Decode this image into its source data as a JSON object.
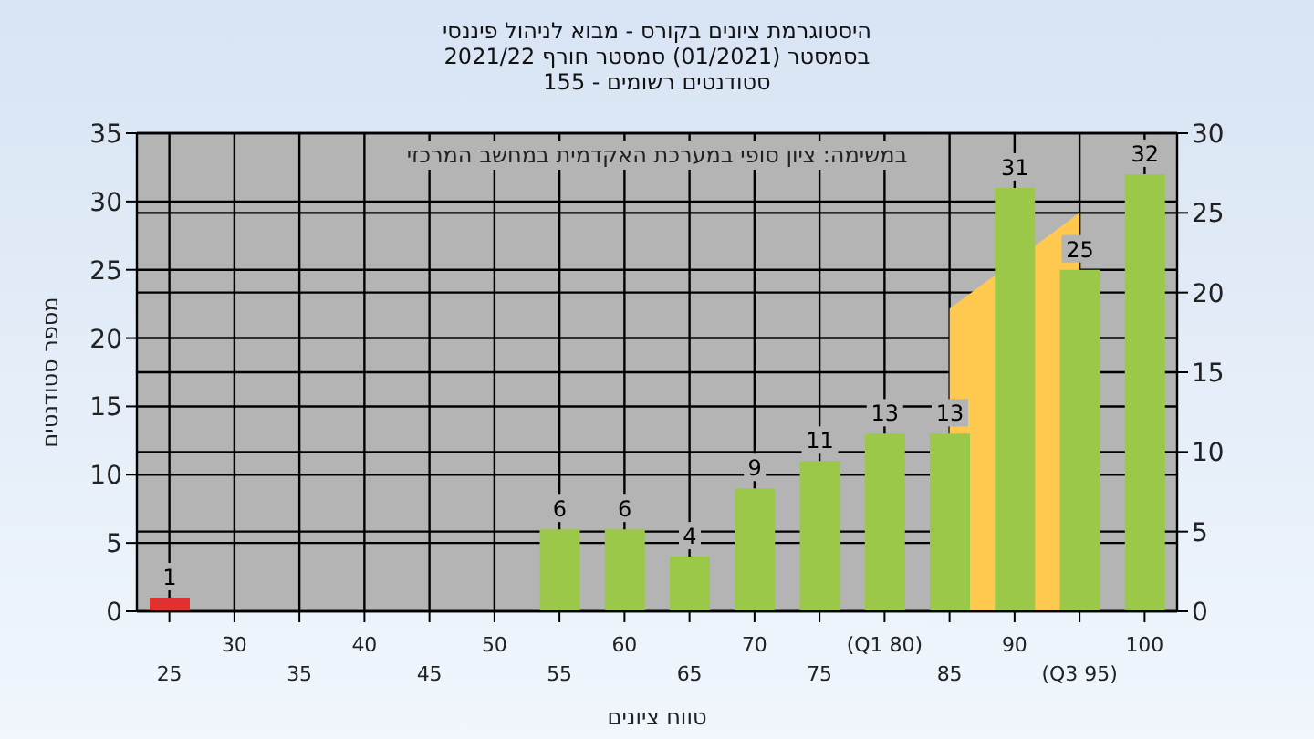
{
  "chart_data": {
    "type": "bar",
    "title": "היסטוגרמת ציונים בקורס - מבוא לניהול פיננסי",
    "subtitle": "בסמסטר (01/2021) סמסטר חורף 2021/22\nסטודנטים רשומים - 155",
    "xlabel": "טווח ציונים",
    "ylabel": "מספר סטודנטים",
    "annotations": [
      "במשימה: ציון סופי במערכת האקדמית במחשב המרכזי"
    ],
    "categories": [
      "25",
      "30",
      "35",
      "40",
      "45",
      "50",
      "55",
      "60",
      "65",
      "70",
      "75",
      "(Q1 80)",
      "85",
      "90",
      "(Q3 95)",
      "100"
    ],
    "series": [
      {
        "type": "area",
        "axis": "y2",
        "color": "#ffc94f",
        "values": [
          null,
          null,
          null,
          null,
          null,
          null,
          null,
          null,
          null,
          null,
          null,
          null,
          19,
          null,
          25,
          null
        ]
      },
      {
        "colors": [
          "#e03030",
          "#9cc84a",
          "#9cc84a",
          "#9cc84a",
          "#9cc84a",
          "#9cc84a",
          "#9cc84a",
          "#9cc84a",
          "#9cc84a",
          "#9cc84a",
          "#9cc84a",
          "#9cc84a",
          "#9cc84a",
          "#9cc84a",
          "#9cc84a",
          "#9cc84a"
        ],
        "values": [
          1,
          0,
          0,
          0,
          0,
          0,
          6,
          6,
          4,
          9,
          11,
          13,
          13,
          31,
          25,
          32
        ],
        "value_labels": [
          "1",
          null,
          null,
          null,
          null,
          null,
          "6",
          "6",
          "4",
          "9",
          "11",
          "13",
          "13",
          "31",
          "25",
          "32"
        ]
      }
    ],
    "ylim": [
      0,
      35
    ],
    "yticks": [
      0,
      5,
      10,
      15,
      20,
      25,
      30,
      35
    ],
    "y2lim": [
      0,
      30
    ],
    "y2ticks": [
      0,
      5,
      10,
      15,
      20,
      25,
      30
    ],
    "grid": true,
    "legend": false
  }
}
